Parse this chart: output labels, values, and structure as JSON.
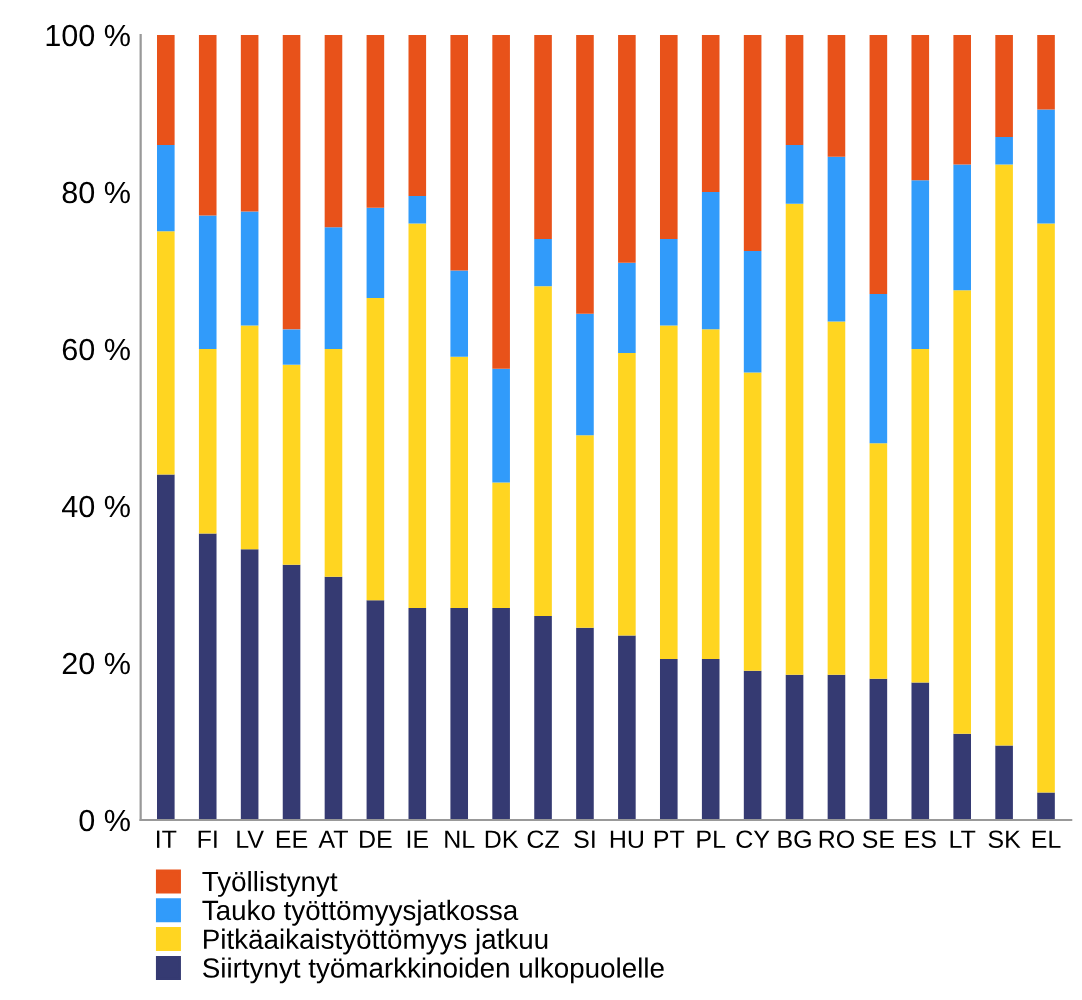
{
  "chart_data": {
    "type": "bar",
    "stacked": true,
    "categories": [
      "IT",
      "FI",
      "LV",
      "EE",
      "AT",
      "DE",
      "IE",
      "NL",
      "DK",
      "CZ",
      "SI",
      "HU",
      "PT",
      "PL",
      "CY",
      "BG",
      "RO",
      "SE",
      "ES",
      "LT",
      "SK",
      "EL"
    ],
    "series": [
      {
        "name": "Siirtynyt työmarkkinoiden ulkopuolelle",
        "color": "#353a72",
        "values": [
          44,
          36.5,
          34.5,
          32.5,
          31,
          28,
          27,
          27,
          27,
          26,
          24.5,
          23.5,
          20.5,
          20.5,
          19,
          18.5,
          18.5,
          18,
          17.5,
          11,
          9.5,
          3.5
        ]
      },
      {
        "name": "Pitkäaikaistyöttömyys jatkuu",
        "color": "#ffd521",
        "values": [
          31,
          23.5,
          28.5,
          25.5,
          29,
          38.5,
          49,
          32,
          16,
          42,
          24.5,
          36,
          42.5,
          42,
          38,
          60,
          45,
          30,
          42.5,
          56.5,
          74,
          72.5
        ]
      },
      {
        "name": "Tauko työttömyysjatkossa",
        "color": "#319bfa",
        "values": [
          11,
          17,
          14.5,
          4.5,
          15.5,
          11.5,
          3.5,
          11,
          14.5,
          6,
          15.5,
          11.5,
          11,
          17.5,
          15.5,
          7.5,
          21,
          19,
          21.5,
          16,
          3.5,
          14.5
        ]
      },
      {
        "name": "Työllistynyt",
        "color": "#e8521a",
        "values": [
          14,
          23,
          22.5,
          37.5,
          24.5,
          22,
          20.5,
          30,
          42.5,
          26,
          35.5,
          29,
          26,
          20,
          27.5,
          14,
          15.5,
          33,
          18.5,
          16.5,
          13,
          9.5
        ]
      }
    ],
    "ylim": [
      0,
      100
    ],
    "yticks": [
      {
        "value": 0,
        "label": "0 %"
      },
      {
        "value": 20,
        "label": "20 %"
      },
      {
        "value": 40,
        "label": "40 %"
      },
      {
        "value": 60,
        "label": "60 %"
      },
      {
        "value": 80,
        "label": "80 %"
      },
      {
        "value": 100,
        "label": "100 %"
      }
    ],
    "grid": false,
    "legend": "bottom left"
  }
}
